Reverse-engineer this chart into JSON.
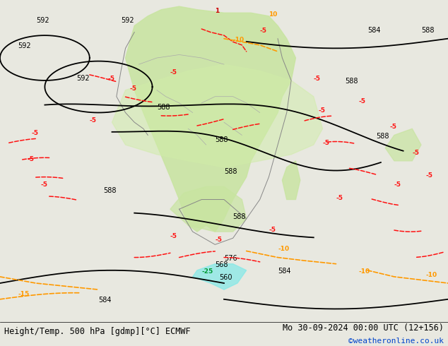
{
  "title_left": "Height/Temp. 500 hPa [gdmp][°C] ECMWF",
  "title_right": "Mo 30-09-2024 00:00 UTC (12+156)",
  "credit": "©weatheronline.co.uk",
  "background_color": "#f0f0e8",
  "map_background": "#dcdccc",
  "green_fill": "#c8e6a0",
  "light_green_fill": "#e0f0c0",
  "contour_color_z500": "#000000",
  "contour_color_temp_neg": "#ff2200",
  "contour_color_temp_neg2": "#ff6600",
  "contour_color_temp_pos": "#ff0000",
  "orange_contour": "#ff9900",
  "cyan_fill": "#a0f0f0",
  "bottom_bar_color": "#e8e8e8",
  "font_size_title": 8.5,
  "font_size_credit": 8,
  "figsize": [
    6.34,
    4.9
  ],
  "dpi": 100
}
